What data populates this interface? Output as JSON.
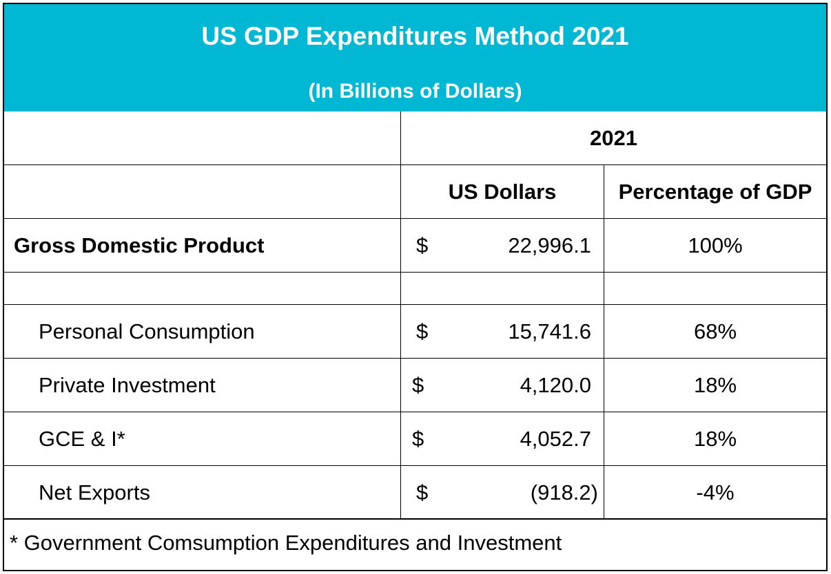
{
  "header": {
    "title": "US GDP Expenditures Method 2021",
    "subtitle": "(In Billions of Dollars)"
  },
  "table": {
    "year_header": "2021",
    "columns": [
      "US Dollars",
      "Percentage of GDP"
    ],
    "gdp_row": {
      "label": "Gross Domestic Product",
      "currency": "$",
      "value": "22,996.1",
      "percent": "100%"
    },
    "rows": [
      {
        "label": "Personal Consumption",
        "currency": "$",
        "value": "15,741.6",
        "percent": "68%"
      },
      {
        "label": "Private Investment",
        "currency": "$",
        "value": "4,120.0",
        "percent": "18%"
      },
      {
        "label": "GCE & I*",
        "currency": "$",
        "value": "4,052.7",
        "percent": "18%"
      },
      {
        "label": "Net Exports",
        "currency": "$",
        "value": "(918.2)",
        "percent": "-4%"
      }
    ]
  },
  "footnote": "* Government Comsumption Expenditures and Investment",
  "colors": {
    "header_bg": "#00b8d4",
    "header_text": "#ffffff"
  }
}
